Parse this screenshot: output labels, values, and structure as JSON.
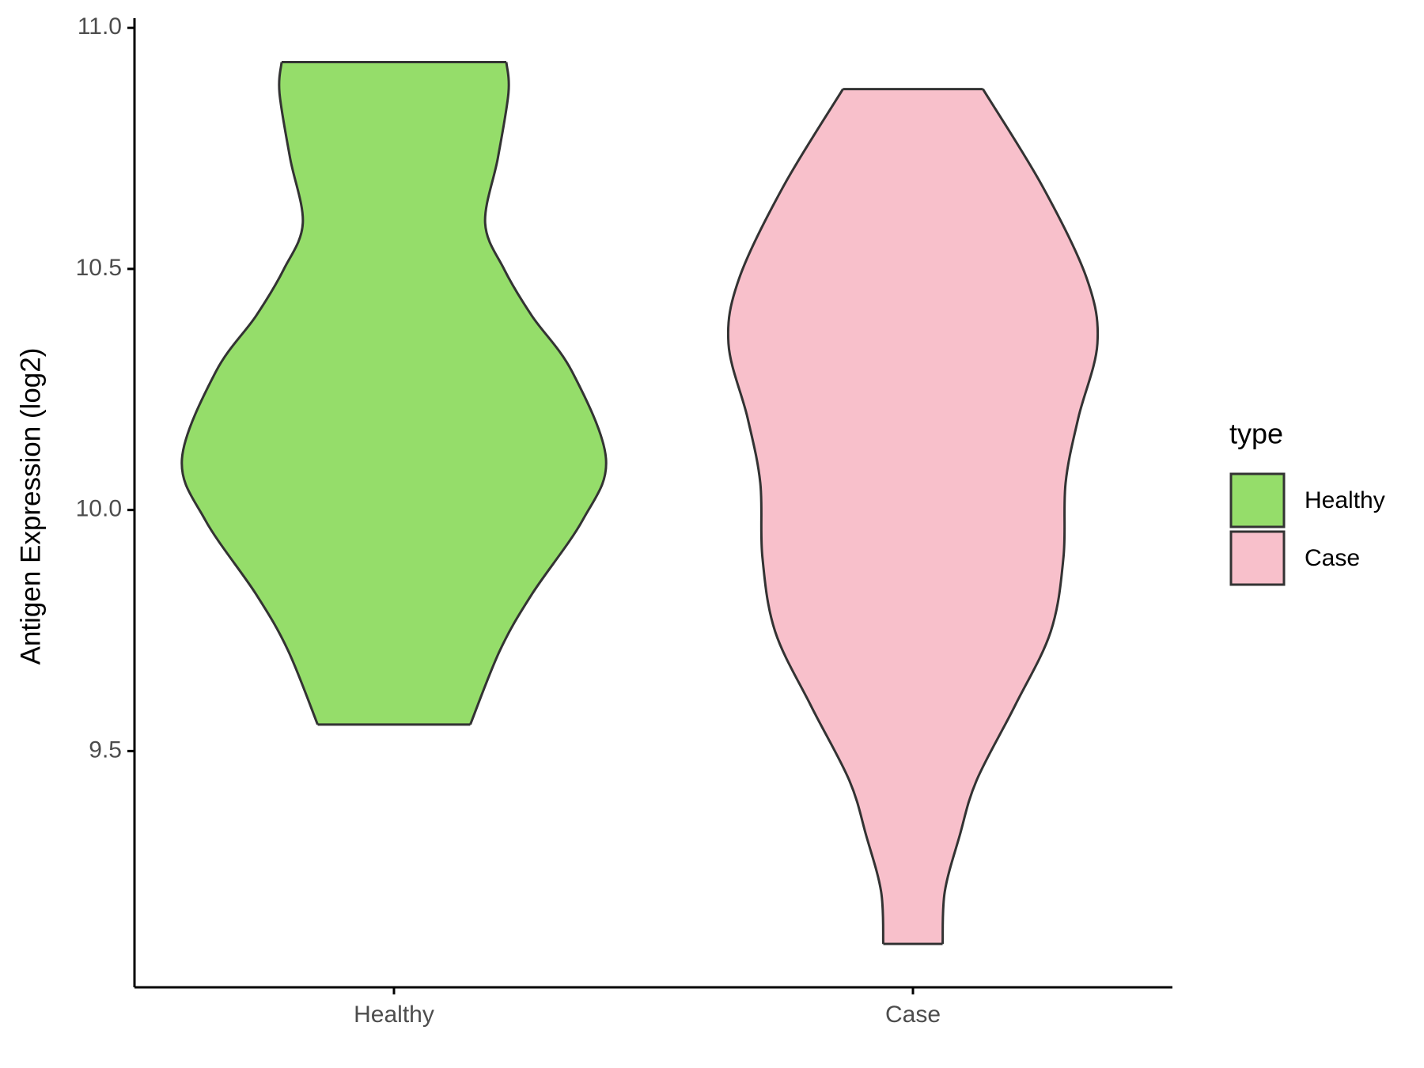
{
  "chart_data": {
    "type": "violin",
    "y_label": "Antigen Expression (log2)",
    "categories": [
      "Healthy",
      "Case"
    ],
    "legend_title": "type",
    "legend_position": "right",
    "ylim": [
      9.01,
      11.02
    ],
    "yticks": [
      {
        "value": 11.0,
        "label": "11.0"
      },
      10.5,
      {
        "value": 10.0,
        "label": "10.0"
      },
      9.5
    ],
    "series": [
      {
        "name": "Healthy",
        "color": "#95dd6a",
        "y": [
          10.929,
          10.865,
          10.73,
          10.595,
          10.499,
          10.403,
          10.287,
          10.106,
          9.979,
          9.825,
          9.709,
          9.555
        ],
        "density": [
          0.53,
          0.54,
          0.49,
          0.43,
          0.52,
          0.65,
          0.84,
          1.0,
          0.89,
          0.65,
          0.5,
          0.36
        ]
      },
      {
        "name": "Case",
        "color": "#f8c0cb",
        "y": [
          10.873,
          10.672,
          10.48,
          10.345,
          10.191,
          10.056,
          9.902,
          9.748,
          9.593,
          9.439,
          9.324,
          9.208,
          9.1
        ],
        "density": [
          0.33,
          0.61,
          0.82,
          0.87,
          0.78,
          0.72,
          0.71,
          0.65,
          0.48,
          0.3,
          0.22,
          0.15,
          0.14
        ]
      }
    ]
  }
}
